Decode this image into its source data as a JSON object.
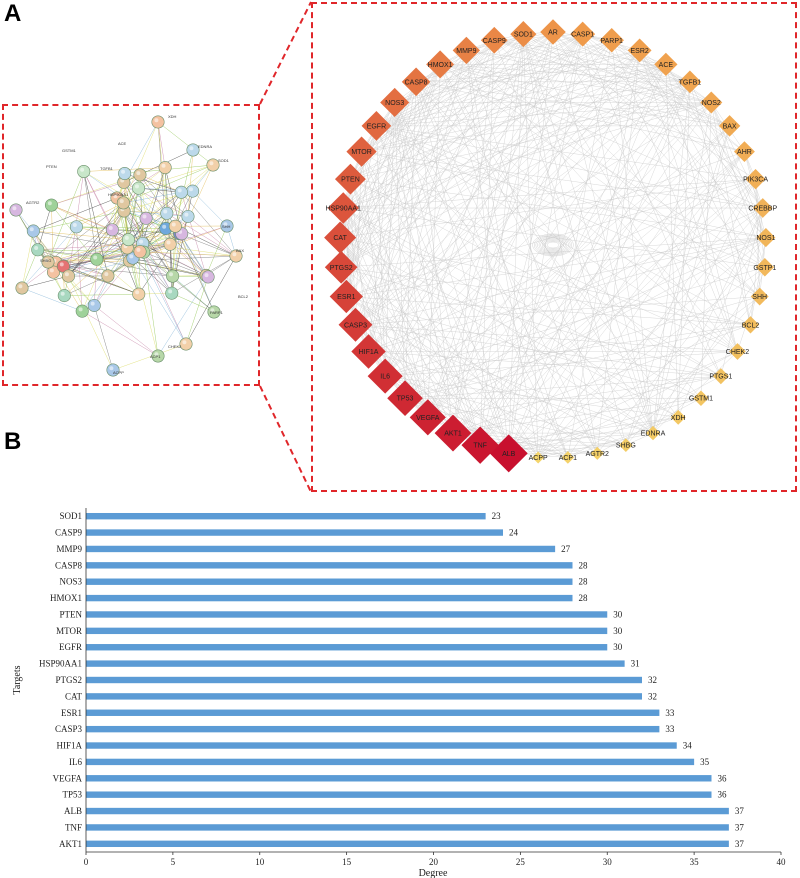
{
  "panel_labels": {
    "a": "A",
    "b": "B"
  },
  "colors": {
    "bar": "#5b9bd5",
    "dash": "#e0262a",
    "edge": "#c8c8c8",
    "node_low": "#f4d56b",
    "node_mid": "#ef9a4a",
    "node_high": "#c8102e"
  },
  "network": {
    "nodes": [
      "ALB",
      "TNF",
      "AKT1",
      "VEGFA",
      "TP53",
      "IL6",
      "HIF1A",
      "CASP3",
      "ESR1",
      "PTGS2",
      "CAT",
      "HSP90AA1",
      "PTEN",
      "MTOR",
      "EGFR",
      "NOS3",
      "CASP8",
      "HMOX1",
      "MMP9",
      "CASP9",
      "SOD1",
      "AR",
      "CASP1",
      "PARP1",
      "ESR2",
      "ACE",
      "TGFB1",
      "NOS2",
      "BAX",
      "AHR",
      "PIK3CA",
      "CREBBP",
      "NOS1",
      "GSTP1",
      "SHH",
      "BCL2",
      "CHEK2",
      "PTGS1",
      "GSTM1",
      "XDH",
      "EDNRA",
      "SHBG",
      "AGTR2",
      "ACP1",
      "ACPP"
    ]
  },
  "ppi": {
    "labels": [
      "XDH",
      "EDNRA",
      "ACE",
      "GSTM1",
      "PTEN",
      "SOD1",
      "AGTR2",
      "SHH",
      "BAX",
      "BCL2",
      "PARP1",
      "CHEK2",
      "ACP1",
      "ACPP",
      "SHBG",
      "HSP90AA1",
      "TGFB1"
    ]
  },
  "chart_data": {
    "type": "bar",
    "orientation": "horizontal",
    "categories": [
      "SOD1",
      "CASP9",
      "MMP9",
      "CASP8",
      "NOS3",
      "HMOX1",
      "PTEN",
      "MTOR",
      "EGFR",
      "HSP90AA1",
      "PTGS2",
      "CAT",
      "ESR1",
      "CASP3",
      "HIF1A",
      "IL6",
      "VEGFA",
      "TP53",
      "ALB",
      "TNF",
      "AKT1"
    ],
    "values": [
      23,
      24,
      27,
      28,
      28,
      28,
      30,
      30,
      30,
      31,
      32,
      32,
      33,
      33,
      34,
      35,
      36,
      36,
      37,
      37,
      37
    ],
    "xlabel": "Degree",
    "ylabel": "Targets",
    "xlim": [
      0,
      40
    ],
    "xticks": [
      0,
      5,
      10,
      15,
      20,
      25,
      30,
      35,
      40
    ],
    "grid": false
  }
}
